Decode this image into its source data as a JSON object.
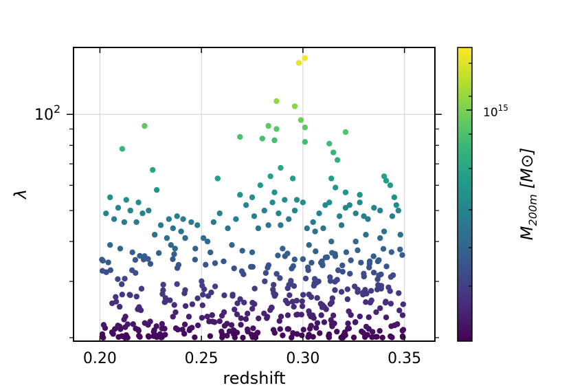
{
  "chart_data": {
    "type": "scatter",
    "title": "",
    "xlabel": "redshift",
    "ylabel": "λ",
    "colorbar_label": "M200m [M⊙]",
    "colorbar_label_main": "M",
    "colorbar_label_sub": "200m",
    "colorbar_label_unit": "[M⊙]",
    "xlim": [
      0.187,
      0.365
    ],
    "ylim": [
      19.5,
      162
    ],
    "y_scale": "log",
    "x_ticks": [
      0.2,
      0.25,
      0.3,
      0.35
    ],
    "x_tick_labels": [
      "0.20",
      "0.25",
      "0.30",
      "0.35"
    ],
    "y_major_tick_label": "10",
    "y_major_tick_exp": "2",
    "colorbar_tick_label": "10",
    "colorbar_tick_exp": "15",
    "grid": true,
    "colormap": [
      "#440154",
      "#482878",
      "#3e4989",
      "#31688e",
      "#26828e",
      "#1f9e89",
      "#35b779",
      "#6ece58",
      "#b5de2b",
      "#fde725"
    ],
    "points": [
      [
        0.222,
        92
      ],
      [
        0.211,
        78
      ],
      [
        0.226,
        67
      ],
      [
        0.228,
        58
      ],
      [
        0.205,
        55
      ],
      [
        0.213,
        54
      ],
      [
        0.219,
        53
      ],
      [
        0.209,
        51
      ],
      [
        0.215,
        50
      ],
      [
        0.203,
        49
      ],
      [
        0.221,
        49
      ],
      [
        0.224,
        50
      ],
      [
        0.207,
        47
      ],
      [
        0.212,
        46
      ],
      [
        0.218,
        46
      ],
      [
        0.23,
        45
      ],
      [
        0.234,
        47
      ],
      [
        0.238,
        48
      ],
      [
        0.241,
        47
      ],
      [
        0.236,
        44
      ],
      [
        0.245,
        46
      ],
      [
        0.248,
        45
      ],
      [
        0.24,
        43
      ],
      [
        0.227,
        42
      ],
      [
        0.233,
        41
      ],
      [
        0.242,
        41
      ],
      [
        0.205,
        39
      ],
      [
        0.21,
        38
      ],
      [
        0.216,
        37
      ],
      [
        0.222,
        36
      ],
      [
        0.235,
        39
      ],
      [
        0.237,
        38
      ],
      [
        0.247,
        38
      ],
      [
        0.251,
        41
      ],
      [
        0.256,
        46
      ],
      [
        0.259,
        49
      ],
      [
        0.258,
        63
      ],
      [
        0.263,
        44
      ],
      [
        0.267,
        47
      ],
      [
        0.269,
        56
      ],
      [
        0.272,
        52
      ],
      [
        0.275,
        55
      ],
      [
        0.279,
        60
      ],
      [
        0.276,
        48
      ],
      [
        0.281,
        50
      ],
      [
        0.284,
        64
      ],
      [
        0.286,
        57
      ],
      [
        0.285,
        53
      ],
      [
        0.288,
        49
      ],
      [
        0.283,
        45
      ],
      [
        0.278,
        44
      ],
      [
        0.291,
        54
      ],
      [
        0.296,
        50
      ],
      [
        0.297,
        54
      ],
      [
        0.3,
        53
      ],
      [
        0.293,
        47
      ],
      [
        0.289,
        45
      ],
      [
        0.302,
        44
      ],
      [
        0.305,
        46
      ],
      [
        0.308,
        49
      ],
      [
        0.311,
        52
      ],
      [
        0.313,
        53
      ],
      [
        0.316,
        59
      ],
      [
        0.314,
        63
      ],
      [
        0.318,
        48
      ],
      [
        0.321,
        51
      ],
      [
        0.323,
        52
      ],
      [
        0.326,
        49
      ],
      [
        0.328,
        53
      ],
      [
        0.33,
        48
      ],
      [
        0.335,
        51
      ],
      [
        0.338,
        50
      ],
      [
        0.341,
        62
      ],
      [
        0.343,
        60
      ],
      [
        0.345,
        55
      ],
      [
        0.346,
        52
      ],
      [
        0.347,
        50
      ],
      [
        0.344,
        48
      ],
      [
        0.332,
        47
      ],
      [
        0.319,
        45
      ],
      [
        0.31,
        44
      ],
      [
        0.306,
        43
      ],
      [
        0.331,
        42
      ],
      [
        0.34,
        43
      ],
      [
        0.269,
        85
      ],
      [
        0.28,
        84
      ],
      [
        0.286,
        83
      ],
      [
        0.283,
        92
      ],
      [
        0.287,
        90
      ],
      [
        0.301,
        91
      ],
      [
        0.301,
        82
      ],
      [
        0.313,
        81
      ],
      [
        0.321,
        88
      ],
      [
        0.315,
        76
      ],
      [
        0.317,
        72
      ],
      [
        0.34,
        64
      ],
      [
        0.295,
        63
      ],
      [
        0.289,
        68
      ],
      [
        0.296,
        106
      ],
      [
        0.299,
        96
      ],
      [
        0.298,
        145
      ],
      [
        0.301,
        150
      ],
      [
        0.287,
        110
      ],
      [
        0.321,
        57
      ],
      [
        0.328,
        56
      ],
      [
        0.253,
        40
      ],
      [
        0.265,
        39
      ],
      [
        0.29,
        38
      ],
      [
        0.303,
        39
      ],
      [
        0.314,
        40
      ],
      [
        0.326,
        40
      ],
      [
        0.338,
        41
      ],
      [
        0.348,
        42
      ],
      [
        0.275,
        37
      ]
    ]
  }
}
